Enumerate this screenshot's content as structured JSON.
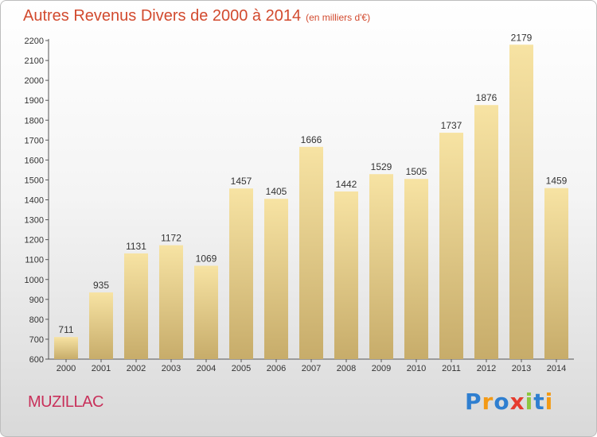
{
  "title": "Autres Revenus Divers de 2000 à 2014",
  "unit_note": "(en milliers d'€)",
  "town": "MUZILLAC",
  "logo": {
    "letters": [
      "P",
      "r",
      "o",
      "x",
      "i",
      "t",
      "i"
    ],
    "colors": [
      "#2f7fd0",
      "#f39a16",
      "#2f7fd0",
      "#e63b2e",
      "#8dc63f",
      "#2f7fd0",
      "#f39a16"
    ]
  },
  "colors": {
    "bar_top": "#f7e3a3",
    "bar_bottom": "#c7ac6a",
    "title": "#d24a2e",
    "town": "#c8305a"
  },
  "chart_data": {
    "type": "bar",
    "categories": [
      "2000",
      "2001",
      "2002",
      "2003",
      "2004",
      "2005",
      "2006",
      "2007",
      "2008",
      "2009",
      "2010",
      "2011",
      "2012",
      "2013",
      "2014"
    ],
    "values": [
      711,
      935,
      1131,
      1172,
      1069,
      1457,
      1405,
      1666,
      1442,
      1529,
      1505,
      1737,
      1876,
      2179,
      1459
    ],
    "ylim": [
      600,
      2200
    ],
    "yticks": [
      600,
      700,
      800,
      900,
      1000,
      1100,
      1200,
      1300,
      1400,
      1500,
      1600,
      1700,
      1800,
      1900,
      2000,
      2100,
      2200
    ],
    "grid": false,
    "data_labels": true
  }
}
